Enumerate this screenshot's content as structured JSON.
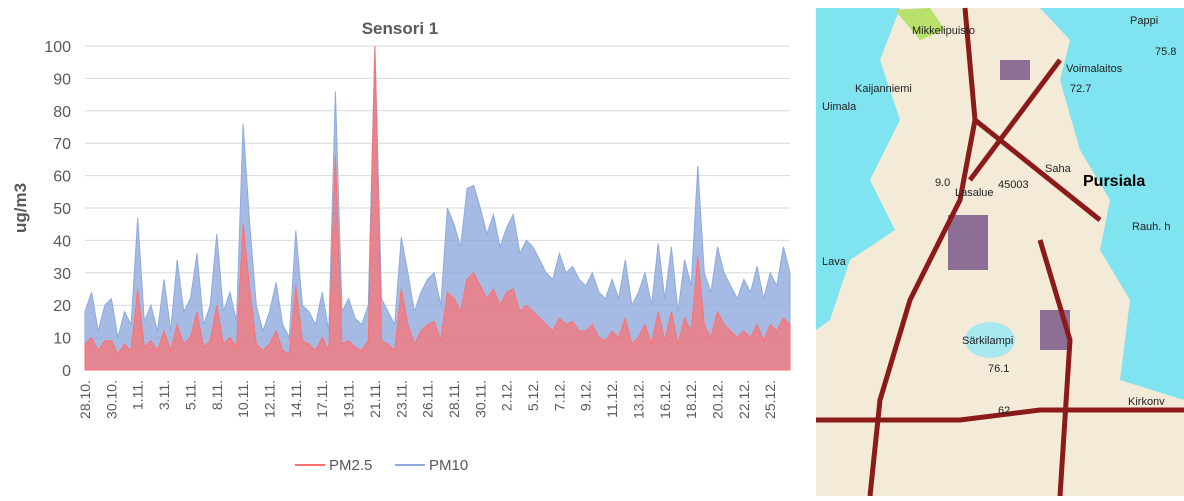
{
  "chart_data": {
    "type": "area",
    "title": "Sensori 1",
    "y_label": "ug/m3",
    "categories": [
      "28.10.",
      null,
      null,
      null,
      "30.10.",
      null,
      null,
      null,
      "1.11.",
      null,
      null,
      null,
      "3.11.",
      null,
      null,
      null,
      "5.11.",
      null,
      null,
      null,
      "8.11.",
      null,
      null,
      null,
      "10.11.",
      null,
      null,
      null,
      "12.11.",
      null,
      null,
      null,
      "14.11.",
      null,
      null,
      null,
      "17.11.",
      null,
      null,
      null,
      "19.11.",
      null,
      null,
      null,
      "21.11.",
      null,
      null,
      null,
      "23.11.",
      null,
      null,
      null,
      "26.11.",
      null,
      null,
      null,
      "28.11.",
      null,
      null,
      null,
      "30.11.",
      null,
      null,
      null,
      "2.12.",
      null,
      null,
      null,
      "5.12.",
      null,
      null,
      null,
      "7.12.",
      null,
      null,
      null,
      "9.12.",
      null,
      null,
      null,
      "11.12.",
      null,
      null,
      null,
      "13.12.",
      null,
      null,
      null,
      "16.12.",
      null,
      null,
      null,
      "18.12.",
      null,
      null,
      null,
      "20.12.",
      null,
      null,
      null,
      "22.12.",
      null,
      null,
      null,
      "25.12.",
      null,
      null,
      null
    ],
    "series": [
      {
        "name": "PM10",
        "color": "#8faadc",
        "values": [
          18,
          24,
          12,
          20,
          22,
          10,
          18,
          14,
          47,
          15,
          20,
          12,
          28,
          12,
          34,
          18,
          22,
          36,
          14,
          20,
          42,
          18,
          24,
          15,
          76,
          45,
          20,
          12,
          18,
          27,
          14,
          10,
          43,
          20,
          18,
          14,
          24,
          12,
          86,
          18,
          22,
          16,
          14,
          20,
          100,
          22,
          18,
          14,
          41,
          30,
          18,
          24,
          28,
          30,
          20,
          50,
          45,
          38,
          56,
          57,
          50,
          42,
          48,
          38,
          44,
          48,
          36,
          40,
          38,
          34,
          30,
          28,
          36,
          30,
          32,
          28,
          26,
          30,
          24,
          22,
          28,
          22,
          34,
          20,
          24,
          30,
          20,
          39,
          22,
          38,
          18,
          34,
          26,
          63,
          30,
          24,
          38,
          30,
          26,
          22,
          28,
          24,
          32,
          22,
          30,
          26,
          38,
          30
        ]
      },
      {
        "name": "PM2.5",
        "color": "#ff6f6f",
        "values": [
          8,
          10,
          6,
          9,
          9,
          5,
          8,
          6,
          25,
          7,
          9,
          6,
          12,
          6,
          14,
          8,
          10,
          18,
          7,
          9,
          20,
          8,
          10,
          7,
          45,
          25,
          8,
          6,
          8,
          12,
          6,
          5,
          26,
          9,
          8,
          6,
          10,
          6,
          66,
          8,
          9,
          7,
          6,
          9,
          100,
          9,
          8,
          6,
          25,
          14,
          8,
          12,
          14,
          15,
          9,
          24,
          22,
          18,
          28,
          30,
          26,
          22,
          25,
          20,
          24,
          25,
          18,
          20,
          18,
          16,
          14,
          12,
          16,
          14,
          15,
          12,
          12,
          14,
          10,
          9,
          12,
          10,
          16,
          8,
          10,
          14,
          8,
          18,
          9,
          18,
          8,
          16,
          12,
          35,
          14,
          10,
          18,
          14,
          12,
          10,
          12,
          10,
          14,
          9,
          14,
          12,
          16,
          14
        ]
      }
    ],
    "legend_order": [
      1,
      0
    ],
    "ylim": [
      0,
      100
    ],
    "yticks": [
      0,
      10,
      20,
      30,
      40,
      50,
      60,
      70,
      80,
      90,
      100
    ],
    "grid": true
  },
  "map": {
    "labels": [
      "Mikkelipuisto",
      "Voimalaitos",
      "Kaijanniemi",
      "Uimala",
      "72.7",
      "Pursiala",
      "Saha",
      "Lava",
      "Särkilampi",
      "76.1",
      "Kirkonv",
      "Rauh. h",
      "45003",
      "62",
      "Pappi",
      "75.8",
      "9.0",
      "Lasalue"
    ]
  }
}
